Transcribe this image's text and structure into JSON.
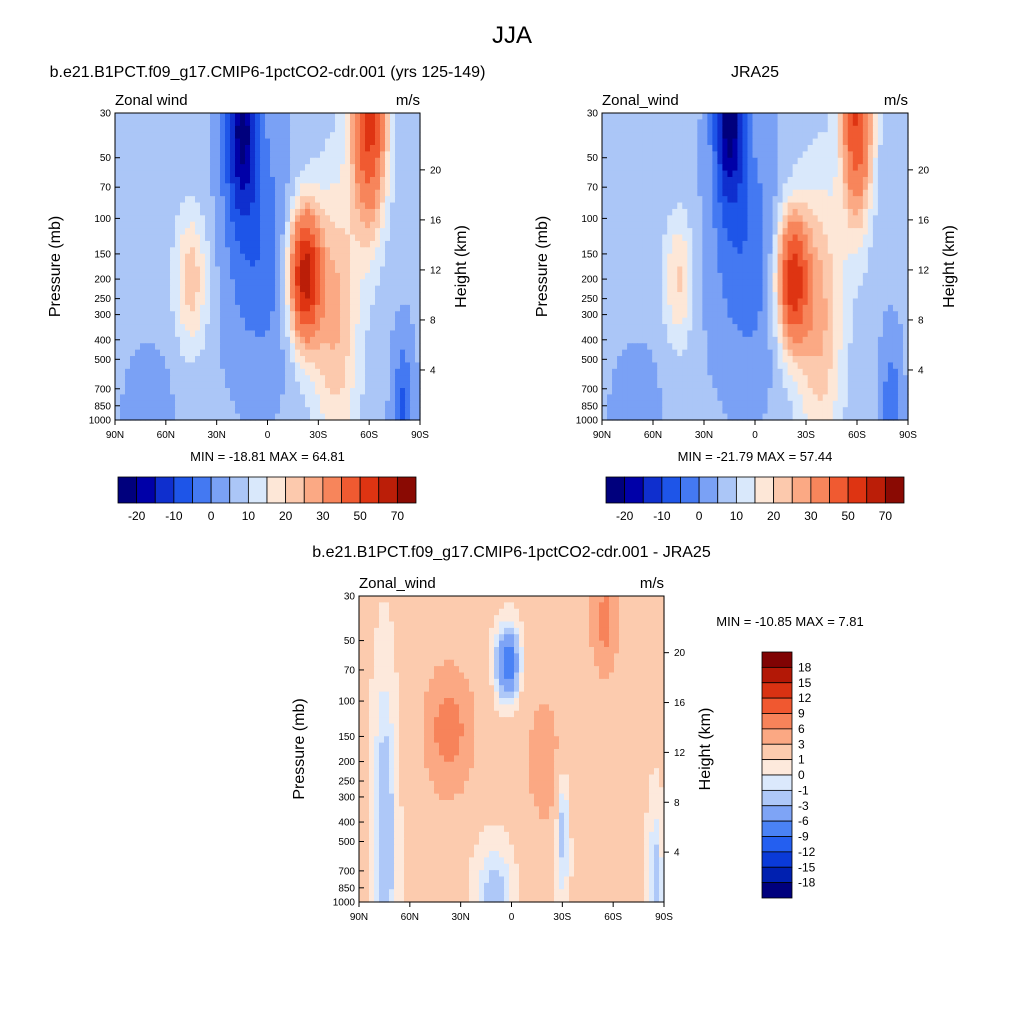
{
  "figure": {
    "title": "JJA"
  },
  "chart_data": [
    {
      "type": "heatmap",
      "variant": "filled-contour latitude-pressure cross-section",
      "title": "b.e21.B1PCT.f09_g17.CMIP6-1pctCO2-cdr.001 (yrs 125-149)",
      "left_label": "Zonal wind",
      "right_label": "m/s",
      "xlabel": "",
      "ylabel": "Pressure (mb)",
      "ylabel_right": "Height (km)",
      "x_ticks": [
        "90N",
        "60N",
        "30N",
        "0",
        "30S",
        "60S",
        "90S"
      ],
      "x_range": [
        90,
        -90
      ],
      "y_ticks": [
        30,
        50,
        70,
        100,
        150,
        200,
        250,
        300,
        400,
        500,
        700,
        850,
        1000
      ],
      "y_range": [
        30,
        1000
      ],
      "y_scale": "log",
      "y_right_ticks": [
        4,
        8,
        12,
        16,
        20
      ],
      "stats": "MIN = -18.81  MAX =  64.81",
      "min": -18.81,
      "max": 64.81,
      "levels": [
        -25,
        -20,
        -15,
        -10,
        -5,
        0,
        5,
        10,
        15,
        20,
        25,
        30,
        40,
        50,
        60,
        70
      ],
      "colorbar_labels": [
        "-20",
        "-10",
        "0",
        "10",
        "20",
        "30",
        "50",
        "70"
      ],
      "colorbar_orientation": "horizontal",
      "features": [
        {
          "type": "westerly jet",
          "lat": -22,
          "pressure": 190,
          "value": 60
        },
        {
          "type": "polar night jet",
          "lat": -60,
          "pressure": 30,
          "value": 65
        },
        {
          "type": "subtropical westerly",
          "lat": 45,
          "pressure": 200,
          "value": 22
        },
        {
          "type": "easterlies",
          "lat": 15,
          "pressure": 35,
          "value": -18
        }
      ]
    },
    {
      "type": "heatmap",
      "variant": "filled-contour latitude-pressure cross-section",
      "title": "JRA25",
      "left_label": "Zonal_wind",
      "right_label": "m/s",
      "xlabel": "",
      "ylabel": "Pressure (mb)",
      "ylabel_right": "Height (km)",
      "x_ticks": [
        "90N",
        "60N",
        "30N",
        "0",
        "30S",
        "60S",
        "90S"
      ],
      "x_range": [
        90,
        -90
      ],
      "y_ticks": [
        30,
        50,
        70,
        100,
        150,
        200,
        250,
        300,
        400,
        500,
        700,
        850,
        1000
      ],
      "y_range": [
        30,
        1000
      ],
      "y_scale": "log",
      "y_right_ticks": [
        4,
        8,
        12,
        16,
        20
      ],
      "stats": "MIN = -21.79  MAX =  57.44",
      "min": -21.79,
      "max": 57.44,
      "levels": [
        -25,
        -20,
        -15,
        -10,
        -5,
        0,
        5,
        10,
        15,
        20,
        25,
        30,
        40,
        50,
        60,
        70
      ],
      "colorbar_labels": [
        "-20",
        "-10",
        "0",
        "10",
        "20",
        "30",
        "50",
        "70"
      ],
      "colorbar_orientation": "horizontal",
      "features": [
        {
          "type": "westerly jet",
          "lat": -22,
          "pressure": 200,
          "value": 50
        },
        {
          "type": "polar night jet",
          "lat": -60,
          "pressure": 30,
          "value": 57
        },
        {
          "type": "subtropical westerly",
          "lat": 45,
          "pressure": 200,
          "value": 20
        },
        {
          "type": "easterlies",
          "lat": 15,
          "pressure": 30,
          "value": -21
        }
      ]
    },
    {
      "type": "heatmap",
      "variant": "filled-contour latitude-pressure cross-section (difference)",
      "title": "b.e21.B1PCT.f09_g17.CMIP6-1pctCO2-cdr.001 - JRA25",
      "left_label": "Zonal_wind",
      "right_label": "m/s",
      "xlabel": "",
      "ylabel": "Pressure (mb)",
      "ylabel_right": "Height (km)",
      "x_ticks": [
        "90N",
        "60N",
        "30N",
        "0",
        "30S",
        "60S",
        "90S"
      ],
      "x_range": [
        90,
        -90
      ],
      "y_ticks": [
        30,
        50,
        70,
        100,
        150,
        200,
        250,
        300,
        400,
        500,
        700,
        850,
        1000
      ],
      "y_range": [
        30,
        1000
      ],
      "y_scale": "log",
      "y_right_ticks": [
        4,
        8,
        12,
        16,
        20
      ],
      "stats": "MIN = -10.85  MAX =   7.81",
      "min": -10.85,
      "max": 7.81,
      "levels": [
        -20,
        -18,
        -15,
        -12,
        -9,
        -6,
        -3,
        -1,
        0,
        1,
        3,
        6,
        9,
        12,
        15,
        18
      ],
      "colorbar_labels": [
        "18",
        "15",
        "12",
        "9",
        "6",
        "3",
        "1",
        "0",
        "-1",
        "-3",
        "-6",
        "-9",
        "-12",
        "-15",
        "-18"
      ],
      "colorbar_orientation": "vertical",
      "features": [
        {
          "type": "positive anomaly",
          "lat": 37,
          "pressure": 140,
          "value": 7
        },
        {
          "type": "negative anomaly",
          "lat": 2,
          "pressure": 65,
          "value": -8
        },
        {
          "type": "positive anomaly",
          "lat": -55,
          "pressure": 40,
          "value": 6
        },
        {
          "type": "negative anomaly",
          "lat": 75,
          "pressure": 500,
          "value": -2
        }
      ]
    }
  ],
  "colors": {
    "palette_wind": [
      "#00007d",
      "#0000a8",
      "#0f2fce",
      "#1e55e8",
      "#4479f2",
      "#7aa1f5",
      "#abc6f7",
      "#d9e8fb",
      "#fde7d7",
      "#fcc9ad",
      "#fba984",
      "#f7855b",
      "#f05a31",
      "#de3412",
      "#bb1e08",
      "#8a0a03"
    ],
    "palette_diff": [
      "#00007d",
      "#0020b0",
      "#0a3ad8",
      "#245ff0",
      "#4a82f5",
      "#7ea4f6",
      "#aec8f8",
      "#dbe9fc",
      "#fde9dc",
      "#fccbae",
      "#fba883",
      "#f7835a",
      "#f05830",
      "#d93212",
      "#b31806",
      "#800303"
    ]
  }
}
